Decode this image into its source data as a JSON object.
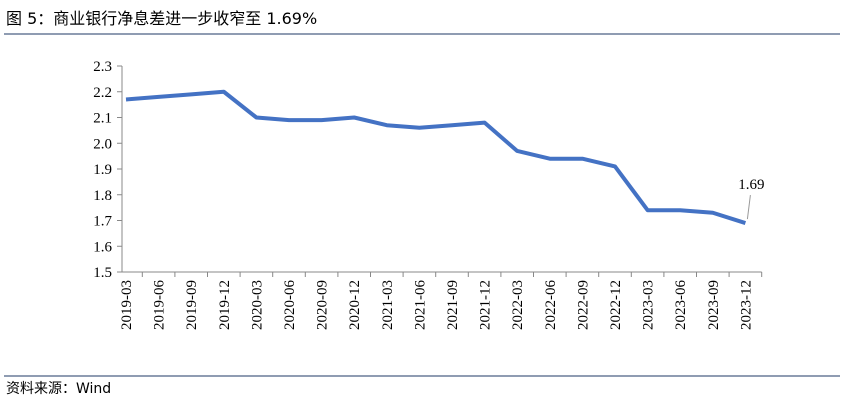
{
  "chart_data": {
    "type": "line",
    "title": "图 5：商业银行净息差进一步收窄至 1.69%",
    "source": "资料来源：Wind",
    "categories": [
      "2019-03",
      "2019-06",
      "2019-09",
      "2019-12",
      "2020-03",
      "2020-06",
      "2020-09",
      "2020-12",
      "2021-03",
      "2021-06",
      "2021-09",
      "2021-12",
      "2022-03",
      "2022-06",
      "2022-09",
      "2022-12",
      "2023-03",
      "2023-06",
      "2023-09",
      "2023-12"
    ],
    "series": [
      {
        "color": "#4472c4",
        "values": [
          2.17,
          2.18,
          2.19,
          2.2,
          2.1,
          2.09,
          2.09,
          2.1,
          2.07,
          2.06,
          2.07,
          2.08,
          1.97,
          1.94,
          1.94,
          1.91,
          1.74,
          1.74,
          1.73,
          1.69
        ]
      }
    ],
    "annotations": [
      {
        "text": "1.69",
        "index": 19
      }
    ],
    "ylim": [
      1.5,
      2.3
    ],
    "yticks": [
      1.5,
      1.6,
      1.7,
      1.8,
      1.9,
      {
        "value": 2,
        "label": "2.0"
      },
      2.1,
      2.2,
      2.3
    ],
    "grid": false
  }
}
